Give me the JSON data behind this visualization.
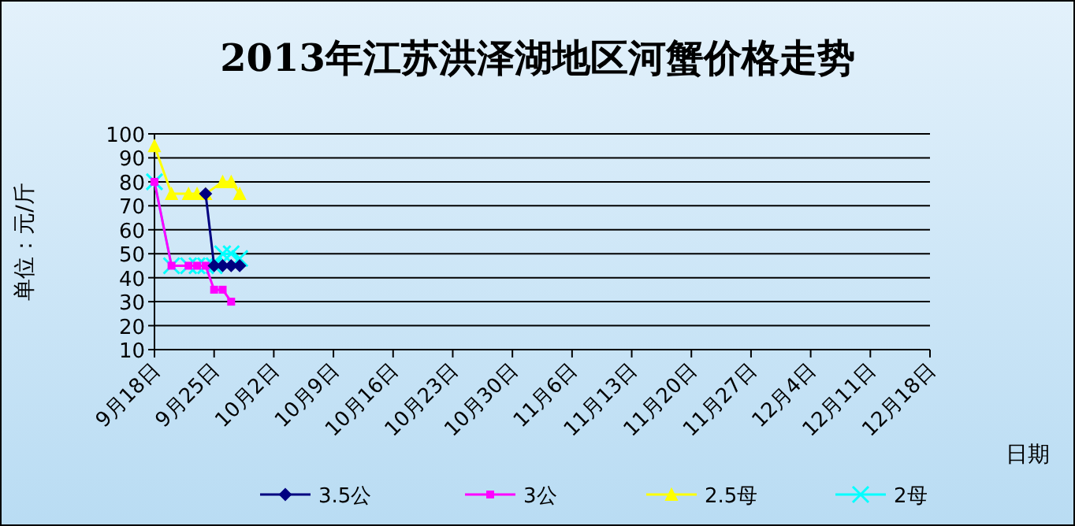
{
  "chart_data": {
    "type": "line",
    "title": "2013年江苏洪泽湖地区河蟹价格走势",
    "xlabel": "日期",
    "ylabel": "单位：元/斤",
    "ylim": [
      10,
      100
    ],
    "yticks": [
      10,
      20,
      30,
      40,
      50,
      60,
      70,
      80,
      90,
      100
    ],
    "xlim": [
      "2013-09-18",
      "2013-12-18"
    ],
    "xticks": [
      {
        "value": "2013-09-18",
        "label": "9月18日"
      },
      {
        "value": "2013-09-25",
        "label": "9月25日"
      },
      {
        "value": "2013-10-02",
        "label": "10月2日"
      },
      {
        "value": "2013-10-09",
        "label": "10月9日"
      },
      {
        "value": "2013-10-16",
        "label": "10月16日"
      },
      {
        "value": "2013-10-23",
        "label": "10月23日"
      },
      {
        "value": "2013-10-30",
        "label": "10月30日"
      },
      {
        "value": "2013-11-06",
        "label": "11月6日"
      },
      {
        "value": "2013-11-13",
        "label": "11月13日"
      },
      {
        "value": "2013-11-20",
        "label": "11月20日"
      },
      {
        "value": "2013-11-27",
        "label": "11月27日"
      },
      {
        "value": "2013-12-04",
        "label": "12月4日"
      },
      {
        "value": "2013-12-11",
        "label": "12月11日"
      },
      {
        "value": "2013-12-18",
        "label": "12月18日"
      }
    ],
    "grid": "y",
    "legend": "bottom",
    "series": [
      {
        "name": "3.5公",
        "color": "#000080",
        "marker": "diamond",
        "x": [
          "2013-09-24",
          "2013-09-25",
          "2013-09-26",
          "2013-09-27",
          "2013-09-28"
        ],
        "values": [
          75,
          45,
          45,
          45,
          45
        ]
      },
      {
        "name": "3公",
        "color": "#ff00ff",
        "marker": "square",
        "x": [
          "2013-09-18",
          "2013-09-20",
          "2013-09-22",
          "2013-09-23",
          "2013-09-24",
          "2013-09-25",
          "2013-09-26",
          "2013-09-27"
        ],
        "values": [
          80,
          45,
          45,
          45,
          45,
          35,
          35,
          30
        ]
      },
      {
        "name": "2.5母",
        "color": "#ffff00",
        "marker": "triangle",
        "x": [
          "2013-09-18",
          "2013-09-20",
          "2013-09-22",
          "2013-09-23",
          "2013-09-24",
          "2013-09-26",
          "2013-09-27",
          "2013-09-28"
        ],
        "values": [
          95,
          75,
          75,
          75,
          75,
          80,
          80,
          75
        ]
      },
      {
        "name": "2母",
        "color": "#00ffff",
        "marker": "cross",
        "x": [
          "2013-09-18",
          "2013-09-20",
          "2013-09-22",
          "2013-09-23",
          "2013-09-24",
          "2013-09-25",
          "2013-09-26",
          "2013-09-27",
          "2013-09-28"
        ],
        "values": [
          80,
          45,
          45,
          45,
          45,
          45,
          50,
          50,
          48
        ]
      }
    ]
  }
}
